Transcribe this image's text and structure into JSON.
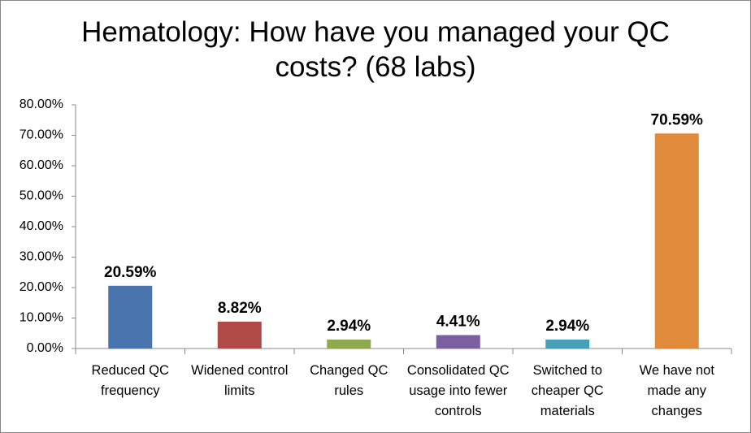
{
  "chart_data": {
    "type": "bar",
    "title": "Hematology: How have you managed your QC costs? (68 labs)",
    "categories": [
      "Reduced QC frequency",
      "Widened control limits",
      "Changed QC rules",
      "Consolidated QC usage into fewer controls",
      "Switched to cheaper QC materials",
      "We have not made any changes"
    ],
    "values": [
      20.59,
      8.82,
      2.94,
      4.41,
      2.94,
      70.59
    ],
    "value_labels": [
      "20.59%",
      "8.82%",
      "2.94%",
      "4.41%",
      "2.94%",
      "70.59%"
    ],
    "colors": [
      "#4a74ad",
      "#b04a47",
      "#8faa4e",
      "#7b5fa0",
      "#45a0b8",
      "#e08a3c"
    ],
    "ylim": [
      0,
      80
    ],
    "yticks": [
      {
        "value": 0,
        "label": "0.00%"
      },
      {
        "value": 10,
        "label": "10.00%"
      },
      {
        "value": 20,
        "label": "20.00%"
      },
      {
        "value": 30,
        "label": "30.00%"
      },
      {
        "value": 40,
        "label": "40.00%"
      },
      {
        "value": 50,
        "label": "50.00%"
      },
      {
        "value": 60,
        "label": "60.00%"
      },
      {
        "value": 70,
        "label": "70.00%"
      },
      {
        "value": 80,
        "label": "80.00%"
      }
    ],
    "grid": false
  }
}
